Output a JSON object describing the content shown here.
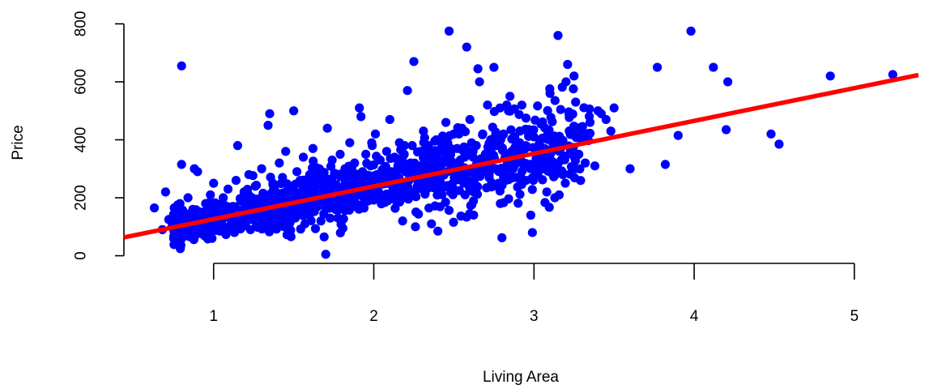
{
  "chart_data": {
    "type": "scatter",
    "title": "",
    "xlabel": "Living Area",
    "ylabel": "Price",
    "xlim": [
      0.44,
      5.4
    ],
    "ylim": [
      -4,
      804
    ],
    "xticks": [
      1,
      2,
      3,
      4,
      5
    ],
    "yticks": [
      0,
      200,
      400,
      600,
      800
    ],
    "xtick_labels": [
      "1",
      "2",
      "3",
      "4",
      "5"
    ],
    "ytick_labels": [
      "0",
      "200",
      "400",
      "600",
      "800"
    ],
    "grid": false,
    "point_color": "#0000ff",
    "line_color": "#ff0000",
    "regression_line": {
      "intercept": 13.4,
      "slope": 113.0
    },
    "points": [
      [
        0.63,
        165
      ],
      [
        0.68,
        90
      ],
      [
        0.7,
        220
      ],
      [
        0.72,
        125
      ],
      [
        0.74,
        100
      ],
      [
        0.76,
        110
      ],
      [
        0.78,
        95
      ],
      [
        0.79,
        180
      ],
      [
        0.8,
        655
      ],
      [
        0.8,
        315
      ],
      [
        0.81,
        150
      ],
      [
        0.82,
        85
      ],
      [
        0.84,
        200
      ],
      [
        0.85,
        120
      ],
      [
        0.86,
        70
      ],
      [
        0.87,
        160
      ],
      [
        0.88,
        300
      ],
      [
        0.9,
        290
      ],
      [
        0.91,
        110
      ],
      [
        0.92,
        140
      ],
      [
        0.93,
        75
      ],
      [
        0.95,
        180
      ],
      [
        0.96,
        90
      ],
      [
        0.97,
        130
      ],
      [
        0.98,
        210
      ],
      [
        0.99,
        60
      ],
      [
        1.0,
        250
      ],
      [
        1.01,
        100
      ],
      [
        1.02,
        140
      ],
      [
        1.03,
        175
      ],
      [
        1.04,
        85
      ],
      [
        1.05,
        120
      ],
      [
        1.06,
        200
      ],
      [
        1.07,
        155
      ],
      [
        1.08,
        95
      ],
      [
        1.09,
        230
      ],
      [
        1.1,
        130
      ],
      [
        1.11,
        110
      ],
      [
        1.12,
        170
      ],
      [
        1.13,
        80
      ],
      [
        1.14,
        260
      ],
      [
        1.15,
        380
      ],
      [
        1.16,
        140
      ],
      [
        1.17,
        190
      ],
      [
        1.18,
        100
      ],
      [
        1.19,
        220
      ],
      [
        1.2,
        160
      ],
      [
        1.21,
        120
      ],
      [
        1.22,
        280
      ],
      [
        1.23,
        90
      ],
      [
        1.24,
        200
      ],
      [
        1.25,
        150
      ],
      [
        1.26,
        240
      ],
      [
        1.27,
        110
      ],
      [
        1.28,
        175
      ],
      [
        1.29,
        130
      ],
      [
        1.3,
        300
      ],
      [
        1.31,
        210
      ],
      [
        1.32,
        95
      ],
      [
        1.33,
        160
      ],
      [
        1.34,
        450
      ],
      [
        1.35,
        490
      ],
      [
        1.36,
        180
      ],
      [
        1.37,
        250
      ],
      [
        1.38,
        120
      ],
      [
        1.39,
        220
      ],
      [
        1.4,
        140
      ],
      [
        1.41,
        320
      ],
      [
        1.42,
        190
      ],
      [
        1.43,
        270
      ],
      [
        1.44,
        100
      ],
      [
        1.45,
        360
      ],
      [
        1.46,
        210
      ],
      [
        1.47,
        150
      ],
      [
        1.48,
        240
      ],
      [
        1.49,
        180
      ],
      [
        1.5,
        500
      ],
      [
        1.51,
        130
      ],
      [
        1.52,
        290
      ],
      [
        1.53,
        200
      ],
      [
        1.54,
        260
      ],
      [
        1.55,
        160
      ],
      [
        1.56,
        340
      ],
      [
        1.57,
        110
      ],
      [
        1.58,
        230
      ],
      [
        1.59,
        190
      ],
      [
        1.6,
        280
      ],
      [
        1.61,
        150
      ],
      [
        1.62,
        370
      ],
      [
        1.63,
        210
      ],
      [
        1.64,
        250
      ],
      [
        1.65,
        170
      ],
      [
        1.66,
        300
      ],
      [
        1.67,
        120
      ],
      [
        1.68,
        260
      ],
      [
        1.69,
        65
      ],
      [
        1.7,
        5
      ],
      [
        1.71,
        440
      ],
      [
        1.72,
        220
      ],
      [
        1.73,
        190
      ],
      [
        1.74,
        330
      ],
      [
        1.75,
        240
      ],
      [
        1.76,
        160
      ],
      [
        1.77,
        280
      ],
      [
        1.78,
        210
      ],
      [
        1.79,
        350
      ],
      [
        1.8,
        230
      ],
      [
        1.81,
        180
      ],
      [
        1.82,
        300
      ],
      [
        1.83,
        260
      ],
      [
        1.84,
        200
      ],
      [
        1.85,
        390
      ],
      [
        1.86,
        240
      ],
      [
        1.87,
        170
      ],
      [
        1.88,
        320
      ],
      [
        1.89,
        270
      ],
      [
        1.9,
        210
      ],
      [
        1.91,
        510
      ],
      [
        1.92,
        480
      ],
      [
        1.93,
        290
      ],
      [
        1.94,
        230
      ],
      [
        1.95,
        350
      ],
      [
        1.96,
        260
      ],
      [
        1.97,
        200
      ],
      [
        1.98,
        310
      ],
      [
        1.99,
        380
      ],
      [
        2.0,
        240
      ],
      [
        2.01,
        420
      ],
      [
        2.02,
        280
      ],
      [
        2.03,
        220
      ],
      [
        2.04,
        330
      ],
      [
        2.05,
        260
      ],
      [
        2.06,
        300
      ],
      [
        2.07,
        200
      ],
      [
        2.08,
        360
      ],
      [
        2.09,
        250
      ],
      [
        2.1,
        470
      ],
      [
        2.11,
        290
      ],
      [
        2.12,
        230
      ],
      [
        2.13,
        340
      ],
      [
        2.14,
        270
      ],
      [
        2.15,
        310
      ],
      [
        2.16,
        390
      ],
      [
        2.17,
        250
      ],
      [
        2.18,
        120
      ],
      [
        2.19,
        350
      ],
      [
        2.2,
        290
      ],
      [
        2.21,
        570
      ],
      [
        2.22,
        260
      ],
      [
        2.23,
        320
      ],
      [
        2.24,
        380
      ],
      [
        2.25,
        670
      ],
      [
        2.26,
        100
      ],
      [
        2.27,
        300
      ],
      [
        2.28,
        240
      ],
      [
        2.29,
        360
      ],
      [
        2.3,
        280
      ],
      [
        2.31,
        430
      ],
      [
        2.32,
        320
      ],
      [
        2.33,
        260
      ],
      [
        2.34,
        380
      ],
      [
        2.35,
        300
      ],
      [
        2.36,
        110
      ],
      [
        2.37,
        340
      ],
      [
        2.38,
        270
      ],
      [
        2.39,
        400
      ],
      [
        2.4,
        85
      ],
      [
        2.41,
        310
      ],
      [
        2.42,
        360
      ],
      [
        2.43,
        280
      ],
      [
        2.44,
        330
      ],
      [
        2.45,
        460
      ],
      [
        2.46,
        290
      ],
      [
        2.47,
        775
      ],
      [
        2.48,
        350
      ],
      [
        2.49,
        240
      ],
      [
        2.5,
        420
      ],
      [
        2.51,
        310
      ],
      [
        2.52,
        370
      ],
      [
        2.53,
        270
      ],
      [
        2.54,
        330
      ],
      [
        2.55,
        440
      ],
      [
        2.56,
        300
      ],
      [
        2.57,
        210
      ],
      [
        2.58,
        720
      ],
      [
        2.59,
        360
      ],
      [
        2.6,
        470
      ],
      [
        2.61,
        290
      ],
      [
        2.62,
        340
      ],
      [
        2.63,
        270
      ],
      [
        2.64,
        380
      ],
      [
        2.65,
        645
      ],
      [
        2.66,
        600
      ],
      [
        2.67,
        320
      ],
      [
        2.68,
        420
      ],
      [
        2.69,
        290
      ],
      [
        2.7,
        350
      ],
      [
        2.71,
        520
      ],
      [
        2.72,
        280
      ],
      [
        2.73,
        400
      ],
      [
        2.74,
        330
      ],
      [
        2.75,
        650
      ],
      [
        2.76,
        300
      ],
      [
        2.77,
        380
      ],
      [
        2.78,
        250
      ],
      [
        2.79,
        180
      ],
      [
        2.8,
        62
      ],
      [
        2.81,
        420
      ],
      [
        2.82,
        340
      ],
      [
        2.83,
        520
      ],
      [
        2.84,
        280
      ],
      [
        2.85,
        550
      ],
      [
        2.86,
        360
      ],
      [
        2.87,
        300
      ],
      [
        2.88,
        410
      ],
      [
        2.89,
        270
      ],
      [
        2.9,
        330
      ],
      [
        2.91,
        390
      ],
      [
        2.92,
        260
      ],
      [
        2.93,
        320
      ],
      [
        2.95,
        260
      ],
      [
        2.98,
        140
      ],
      [
        2.99,
        80
      ],
      [
        3.0,
        410
      ],
      [
        3.02,
        360
      ],
      [
        3.05,
        300
      ],
      [
        3.08,
        220
      ],
      [
        3.1,
        560
      ],
      [
        3.12,
        370
      ],
      [
        3.13,
        200
      ],
      [
        3.15,
        760
      ],
      [
        3.17,
        330
      ],
      [
        3.18,
        280
      ],
      [
        3.2,
        600
      ],
      [
        3.21,
        660
      ],
      [
        3.22,
        430
      ],
      [
        3.25,
        620
      ],
      [
        3.26,
        530
      ],
      [
        3.28,
        350
      ],
      [
        3.3,
        420
      ],
      [
        3.32,
        320
      ],
      [
        3.35,
        460
      ],
      [
        3.38,
        310
      ],
      [
        3.4,
        500
      ],
      [
        3.42,
        490
      ],
      [
        3.45,
        470
      ],
      [
        3.48,
        430
      ],
      [
        3.5,
        510
      ],
      [
        3.6,
        300
      ],
      [
        3.77,
        650
      ],
      [
        3.82,
        315
      ],
      [
        3.9,
        415
      ],
      [
        3.98,
        775
      ],
      [
        4.12,
        650
      ],
      [
        4.2,
        435
      ],
      [
        4.21,
        600
      ],
      [
        4.48,
        420
      ],
      [
        4.53,
        385
      ],
      [
        4.85,
        620
      ],
      [
        5.24,
        625
      ]
    ]
  }
}
